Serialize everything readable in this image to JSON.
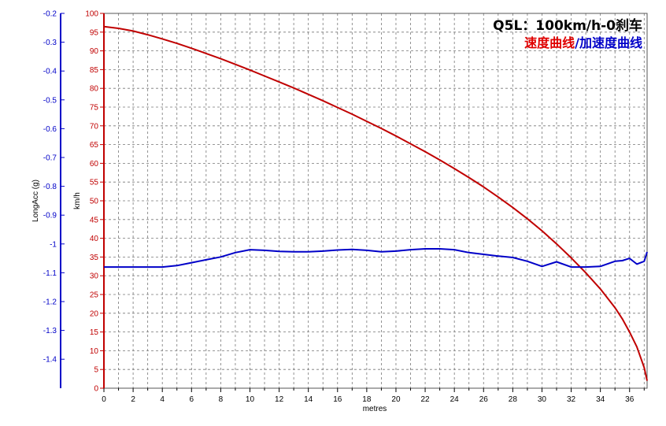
{
  "chart_data": {
    "type": "line",
    "title": "Q5L：100km/h-0刹车",
    "subtitle": {
      "speed_part": "速度曲线",
      "separator": "/",
      "acc_part": "加速度曲线"
    },
    "xlabel": "metres",
    "x_ticks": [
      "0",
      "2",
      "4",
      "6",
      "8",
      "10",
      "12",
      "14",
      "16",
      "18",
      "20",
      "22",
      "24",
      "26",
      "28",
      "30",
      "32",
      "34",
      "36"
    ],
    "xlim": [
      0,
      37.2
    ],
    "grid": true,
    "axes": {
      "speed": {
        "label": "km/h",
        "ylim": [
          0,
          100
        ],
        "ticks": [
          "0",
          "5",
          "10",
          "15",
          "20",
          "25",
          "30",
          "35",
          "40",
          "45",
          "50",
          "55",
          "60",
          "65",
          "70",
          "75",
          "80",
          "85",
          "90",
          "95",
          "100"
        ],
        "color": "#c00000"
      },
      "acc": {
        "label": "LongAcc (g)",
        "ylim": [
          -1.5,
          -0.2
        ],
        "ticks": [
          "-0.2",
          "-0.3",
          "-0.4",
          "-0.5",
          "-0.6",
          "-0.7",
          "-0.8",
          "-0.9",
          "-1",
          "-1.1",
          "-1.2",
          "-1.3",
          "-1.4"
        ],
        "color": "#0000c8"
      }
    },
    "series": [
      {
        "axis": "speed",
        "color": "#c00000",
        "x": [
          0,
          1,
          2,
          3,
          4,
          5,
          6,
          7,
          8,
          9,
          10,
          11,
          12,
          13,
          14,
          15,
          16,
          17,
          18,
          19,
          20,
          21,
          22,
          23,
          24,
          25,
          26,
          27,
          28,
          29,
          30,
          31,
          32,
          33,
          34,
          35,
          35.5,
          36,
          36.5,
          37,
          37.2
        ],
        "values": [
          96.5,
          96,
          95.3,
          94.3,
          93.2,
          92,
          90.7,
          89.3,
          87.9,
          86.4,
          84.9,
          83.3,
          81.7,
          80.1,
          78.4,
          76.7,
          74.9,
          73.1,
          71.2,
          69.3,
          67.3,
          65.2,
          63.1,
          60.9,
          58.6,
          56.2,
          53.7,
          51,
          48.2,
          45.2,
          42,
          38.5,
          34.8,
          30.8,
          26.5,
          21.5,
          18.5,
          15,
          11,
          5.5,
          2
        ]
      },
      {
        "axis": "acc",
        "color": "#0000c8",
        "x": [
          0,
          2,
          4,
          5,
          6,
          7,
          8,
          9,
          10,
          11,
          12,
          13,
          14,
          15,
          16,
          17,
          18,
          19,
          20,
          21,
          22,
          23,
          24,
          25,
          26,
          27,
          28,
          29,
          30,
          31,
          32,
          33,
          34,
          35,
          35.5,
          36,
          36.5,
          37,
          37.2
        ],
        "values": [
          -1.08,
          -1.08,
          -1.08,
          -1.075,
          -1.065,
          -1.055,
          -1.045,
          -1.03,
          -1.02,
          -1.022,
          -1.026,
          -1.027,
          -1.027,
          -1.025,
          -1.021,
          -1.019,
          -1.022,
          -1.027,
          -1.025,
          -1.02,
          -1.017,
          -1.017,
          -1.02,
          -1.03,
          -1.036,
          -1.042,
          -1.047,
          -1.06,
          -1.078,
          -1.062,
          -1.08,
          -1.08,
          -1.078,
          -1.06,
          -1.058,
          -1.05,
          -1.07,
          -1.06,
          -1.028
        ]
      }
    ]
  }
}
